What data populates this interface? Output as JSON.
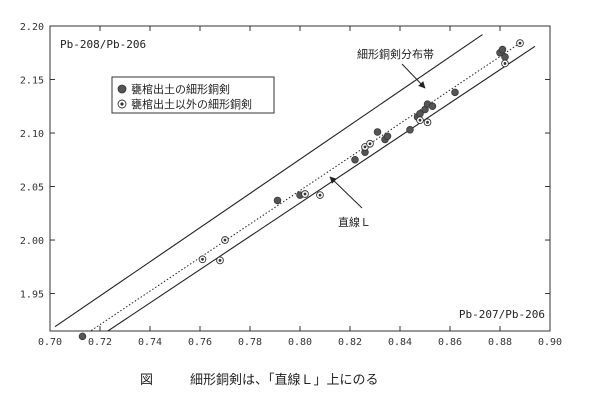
{
  "chart_data": {
    "type": "scatter",
    "xlabel": "Pb-207/Pb-206",
    "ylabel": "Pb-208/Pb-206",
    "xlim": [
      0.7,
      0.9
    ],
    "ylim": [
      1.915,
      2.2
    ],
    "x_ticks": [
      "0.70",
      "0.72",
      "0.74",
      "0.76",
      "0.78",
      "0.80",
      "0.82",
      "0.84",
      "0.86",
      "0.88",
      "0.90"
    ],
    "y_ticks": [
      "1.95",
      "2.00",
      "2.05",
      "2.10",
      "2.15",
      "2.20"
    ],
    "x_tick_values": [
      0.7,
      0.72,
      0.74,
      0.76,
      0.78,
      0.8,
      0.82,
      0.84,
      0.86,
      0.88,
      0.9
    ],
    "y_tick_values": [
      1.95,
      2.0,
      2.05,
      2.1,
      2.15,
      2.2
    ],
    "grid": false,
    "legend_position": "top-left",
    "series": [
      {
        "name": "甕棺出土の細形銅剣",
        "marker": "filled-circle",
        "color": "#555555",
        "points": [
          [
            0.713,
            1.91
          ],
          [
            0.791,
            2.037
          ],
          [
            0.8,
            2.042
          ],
          [
            0.822,
            2.075
          ],
          [
            0.826,
            2.082
          ],
          [
            0.831,
            2.101
          ],
          [
            0.834,
            2.094
          ],
          [
            0.835,
            2.097
          ],
          [
            0.844,
            2.103
          ],
          [
            0.847,
            2.115
          ],
          [
            0.848,
            2.118
          ],
          [
            0.85,
            2.122
          ],
          [
            0.851,
            2.127
          ],
          [
            0.853,
            2.125
          ],
          [
            0.862,
            2.138
          ],
          [
            0.88,
            2.175
          ],
          [
            0.881,
            2.178
          ],
          [
            0.882,
            2.171
          ]
        ]
      },
      {
        "name": "甕棺出土以外の細形銅剣",
        "marker": "ringed-circle",
        "color": "#555555",
        "points": [
          [
            0.761,
            1.982
          ],
          [
            0.768,
            1.981
          ],
          [
            0.77,
            2.0
          ],
          [
            0.802,
            2.043
          ],
          [
            0.808,
            2.042
          ],
          [
            0.826,
            2.087
          ],
          [
            0.828,
            2.09
          ],
          [
            0.848,
            2.112
          ],
          [
            0.851,
            2.11
          ],
          [
            0.882,
            2.165
          ],
          [
            0.888,
            2.184
          ]
        ]
      }
    ],
    "lines": {
      "center": {
        "start": [
          0.713,
          1.91
        ],
        "end": [
          0.888,
          2.184
        ],
        "style": "dotted"
      },
      "band_upper": {
        "start": [
          0.702,
          1.919
        ],
        "end": [
          0.873,
          2.192
        ]
      },
      "band_lower": {
        "start": [
          0.718,
          1.907
        ],
        "end": [
          0.894,
          2.181
        ]
      }
    },
    "annotations": {
      "band_label": "細形銅剣分布帯",
      "line_label": "直線Ｌ"
    },
    "caption": {
      "figure_label": "図",
      "text": "細形銅剣は、「直線Ｌ」上にのる"
    }
  }
}
